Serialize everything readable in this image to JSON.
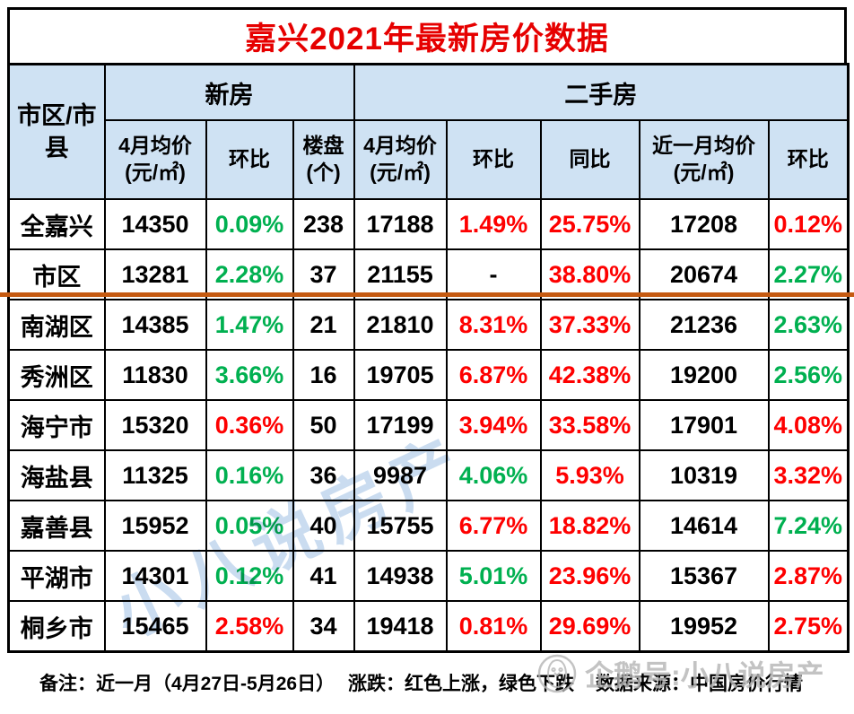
{
  "page": {
    "title": "嘉兴2021年最新房价数据"
  },
  "chart_data": {
    "type": "table",
    "title": "嘉兴2021年最新房价数据",
    "corner_header": "市区/市县",
    "column_groups": [
      {
        "label": "新房",
        "colspan": 3
      },
      {
        "label": "二手房",
        "colspan": 5
      }
    ],
    "columns": [
      "4月均价(元/㎡)",
      "环比",
      "楼盘(个)",
      "4月均价(元/㎡)",
      "环比",
      "同比",
      "近一月均价(元/㎡)",
      "环比"
    ],
    "trend_colors": {
      "up": "#fe0000",
      "down": "#00b050",
      "plain": "#000000"
    },
    "rows": [
      {
        "label": "全嘉兴",
        "cells": [
          [
            "14350",
            "plain"
          ],
          [
            "0.09%",
            "down"
          ],
          [
            "238",
            "plain"
          ],
          [
            "17188",
            "plain"
          ],
          [
            "1.49%",
            "up"
          ],
          [
            "25.75%",
            "up"
          ],
          [
            "17208",
            "plain"
          ],
          [
            "0.12%",
            "up"
          ]
        ]
      },
      {
        "label": "市区",
        "cells": [
          [
            "13281",
            "plain"
          ],
          [
            "2.28%",
            "down"
          ],
          [
            "37",
            "plain"
          ],
          [
            "21155",
            "plain"
          ],
          [
            "-",
            "plain"
          ],
          [
            "38.80%",
            "up"
          ],
          [
            "20674",
            "plain"
          ],
          [
            "2.27%",
            "down"
          ]
        ]
      },
      {
        "label": "南湖区",
        "cells": [
          [
            "14385",
            "plain"
          ],
          [
            "1.47%",
            "down"
          ],
          [
            "21",
            "plain"
          ],
          [
            "21810",
            "plain"
          ],
          [
            "8.31%",
            "up"
          ],
          [
            "37.33%",
            "up"
          ],
          [
            "21236",
            "plain"
          ],
          [
            "2.63%",
            "down"
          ]
        ]
      },
      {
        "label": "秀洲区",
        "cells": [
          [
            "11830",
            "plain"
          ],
          [
            "3.66%",
            "down"
          ],
          [
            "16",
            "plain"
          ],
          [
            "19705",
            "plain"
          ],
          [
            "6.87%",
            "up"
          ],
          [
            "42.38%",
            "up"
          ],
          [
            "19200",
            "plain"
          ],
          [
            "2.56%",
            "down"
          ]
        ]
      },
      {
        "label": "海宁市",
        "cells": [
          [
            "15320",
            "plain"
          ],
          [
            "0.36%",
            "up"
          ],
          [
            "50",
            "plain"
          ],
          [
            "17199",
            "plain"
          ],
          [
            "3.94%",
            "up"
          ],
          [
            "33.58%",
            "up"
          ],
          [
            "17901",
            "plain"
          ],
          [
            "4.08%",
            "up"
          ]
        ]
      },
      {
        "label": "海盐县",
        "cells": [
          [
            "11325",
            "plain"
          ],
          [
            "0.16%",
            "down"
          ],
          [
            "36",
            "plain"
          ],
          [
            "9987",
            "plain"
          ],
          [
            "4.06%",
            "down"
          ],
          [
            "5.93%",
            "up"
          ],
          [
            "10319",
            "plain"
          ],
          [
            "3.32%",
            "up"
          ]
        ]
      },
      {
        "label": "嘉善县",
        "cells": [
          [
            "15952",
            "plain"
          ],
          [
            "0.05%",
            "down"
          ],
          [
            "40",
            "plain"
          ],
          [
            "15755",
            "plain"
          ],
          [
            "6.77%",
            "up"
          ],
          [
            "18.82%",
            "up"
          ],
          [
            "14614",
            "plain"
          ],
          [
            "7.24%",
            "down"
          ]
        ]
      },
      {
        "label": "平湖市",
        "cells": [
          [
            "14301",
            "plain"
          ],
          [
            "0.12%",
            "down"
          ],
          [
            "41",
            "plain"
          ],
          [
            "14938",
            "plain"
          ],
          [
            "5.01%",
            "down"
          ],
          [
            "23.96%",
            "up"
          ],
          [
            "15367",
            "plain"
          ],
          [
            "2.87%",
            "up"
          ]
        ]
      },
      {
        "label": "桐乡市",
        "cells": [
          [
            "15465",
            "plain"
          ],
          [
            "2.58%",
            "up"
          ],
          [
            "34",
            "plain"
          ],
          [
            "19418",
            "plain"
          ],
          [
            "0.81%",
            "up"
          ],
          [
            "29.69%",
            "up"
          ],
          [
            "19952",
            "plain"
          ],
          [
            "2.75%",
            "up"
          ]
        ]
      }
    ]
  },
  "footer": {
    "note": "备注：近一月（4月27日-5月26日）",
    "legend": "涨跌：红色上涨，绿色下跌",
    "source": "数据来源：中国房价行情"
  },
  "watermarks": {
    "diagonal": "小八说房产",
    "account": "企鹅号:小八说房产"
  },
  "colors": {
    "title_red": "#e60000",
    "rise_red": "#fe0000",
    "fall_green": "#00b050",
    "header_bg": "#cfe2f3",
    "divider_orange": "#c55a11"
  }
}
